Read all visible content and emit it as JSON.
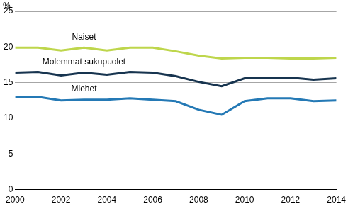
{
  "chart_data": {
    "type": "line",
    "y_label": "%",
    "x": [
      2000,
      2001,
      2002,
      2003,
      2004,
      2005,
      2006,
      2007,
      2008,
      2009,
      2010,
      2011,
      2012,
      2013,
      2014
    ],
    "series": [
      {
        "name": "Naiset",
        "color": "#bed64c",
        "values": [
          19.9,
          19.9,
          19.5,
          19.9,
          19.5,
          19.9,
          19.9,
          19.4,
          18.8,
          18.4,
          18.5,
          18.5,
          18.4,
          18.4,
          18.5
        ]
      },
      {
        "name": "Molemmat sukupuolet",
        "color": "#17344f",
        "values": [
          16.4,
          16.5,
          16.0,
          16.4,
          16.1,
          16.5,
          16.4,
          15.9,
          15.1,
          14.5,
          15.6,
          15.7,
          15.7,
          15.4,
          15.6
        ]
      },
      {
        "name": "Miehet",
        "color": "#2479b5",
        "values": [
          13.0,
          13.0,
          12.5,
          12.6,
          12.6,
          12.8,
          12.6,
          12.4,
          11.2,
          10.5,
          12.4,
          12.8,
          12.8,
          12.4,
          12.5
        ]
      }
    ],
    "xlim": [
      2000,
      2014
    ],
    "xticks": [
      2000,
      2002,
      2004,
      2006,
      2008,
      2010,
      2012,
      2014
    ],
    "ylim": [
      0,
      25
    ],
    "yticks": [
      0,
      5,
      10,
      15,
      20,
      25
    ],
    "grid": true
  }
}
